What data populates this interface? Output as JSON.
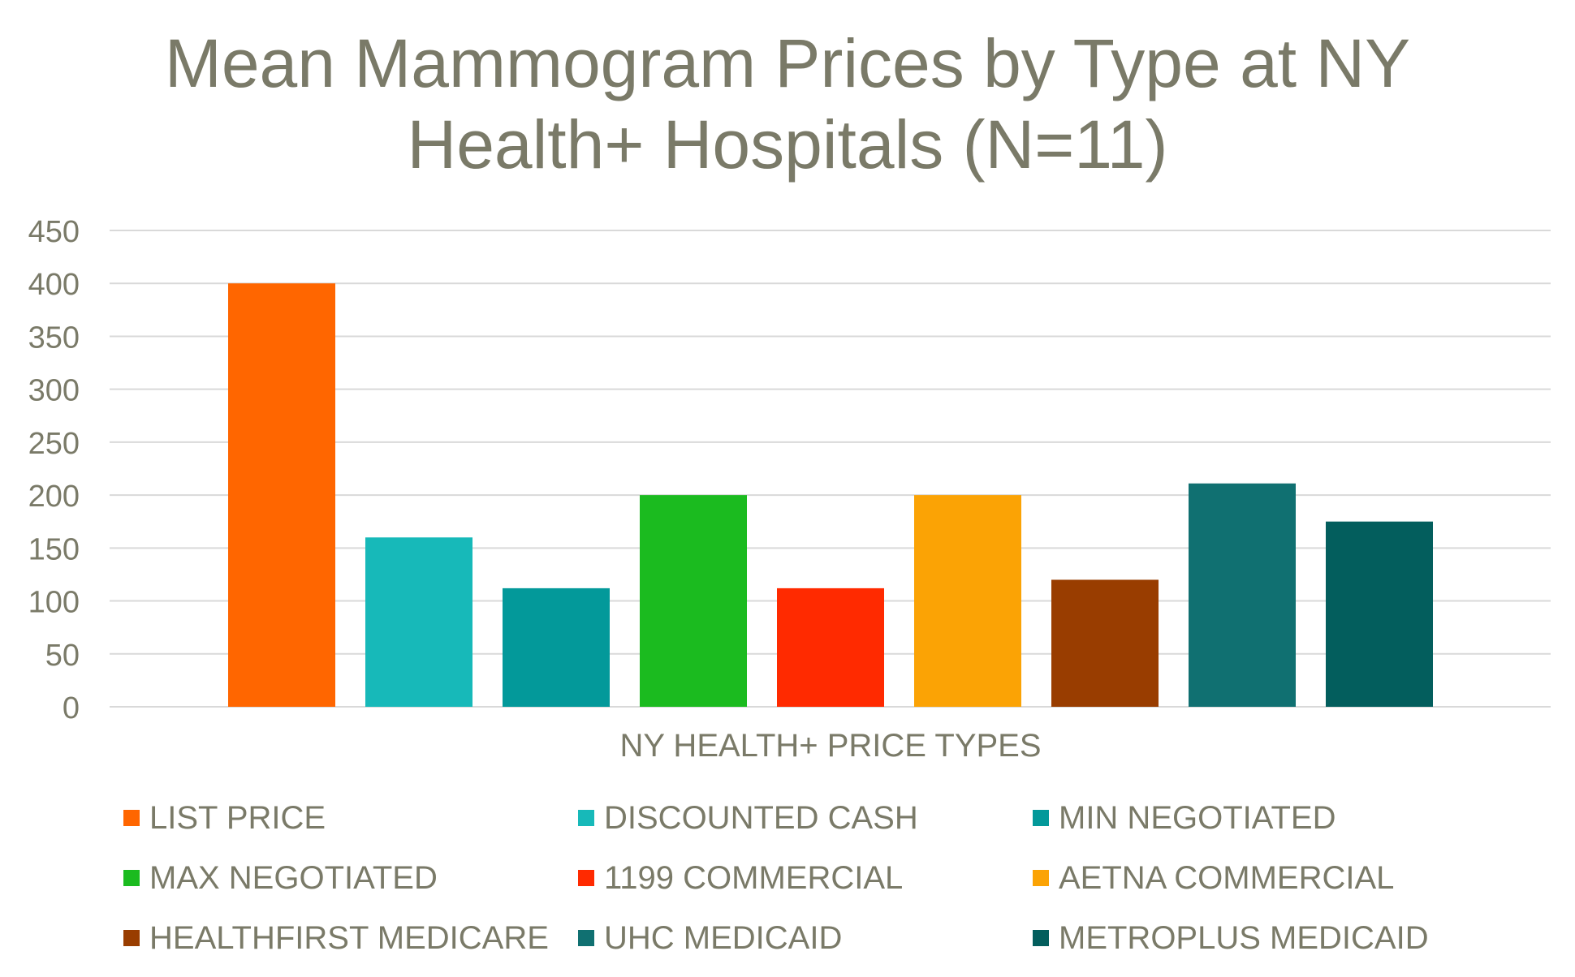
{
  "chart_data": {
    "type": "bar",
    "title": "Mean Mammogram Prices by Type at NY Health+ Hospitals (N=11)",
    "title_lines": [
      "Mean Mammogram Prices by Type at NY",
      "Health+ Hospitals (N=11)"
    ],
    "xlabel": "NY HEALTH+ PRICE TYPES",
    "ylabel": "",
    "ylim": [
      0,
      450
    ],
    "yticks": [
      0,
      50,
      100,
      150,
      200,
      250,
      300,
      350,
      400,
      450
    ],
    "grid": true,
    "legend_position": "bottom",
    "series": [
      {
        "name": "LIST PRICE",
        "value": 400,
        "color": "#ff6600"
      },
      {
        "name": "DISCOUNTED CASH",
        "value": 160,
        "color": "#17b9b9"
      },
      {
        "name": "MIN NEGOTIATED",
        "value": 112,
        "color": "#03999a"
      },
      {
        "name": "MAX NEGOTIATED",
        "value": 200,
        "color": "#1bbb1f"
      },
      {
        "name": "1199 COMMERCIAL",
        "value": 112,
        "color": "#ff2a00"
      },
      {
        "name": "AETNA COMMERCIAL",
        "value": 200,
        "color": "#fba305"
      },
      {
        "name": "HEALTHFIRST MEDICARE",
        "value": 120,
        "color": "#993d00"
      },
      {
        "name": "UHC MEDICAID",
        "value": 211,
        "color": "#107071"
      },
      {
        "name": "METROPLUS MEDICAID",
        "value": 175,
        "color": "#035e5d"
      }
    ]
  },
  "colors": {
    "text": "#7a7a68",
    "grid": "#d9d9d9"
  }
}
